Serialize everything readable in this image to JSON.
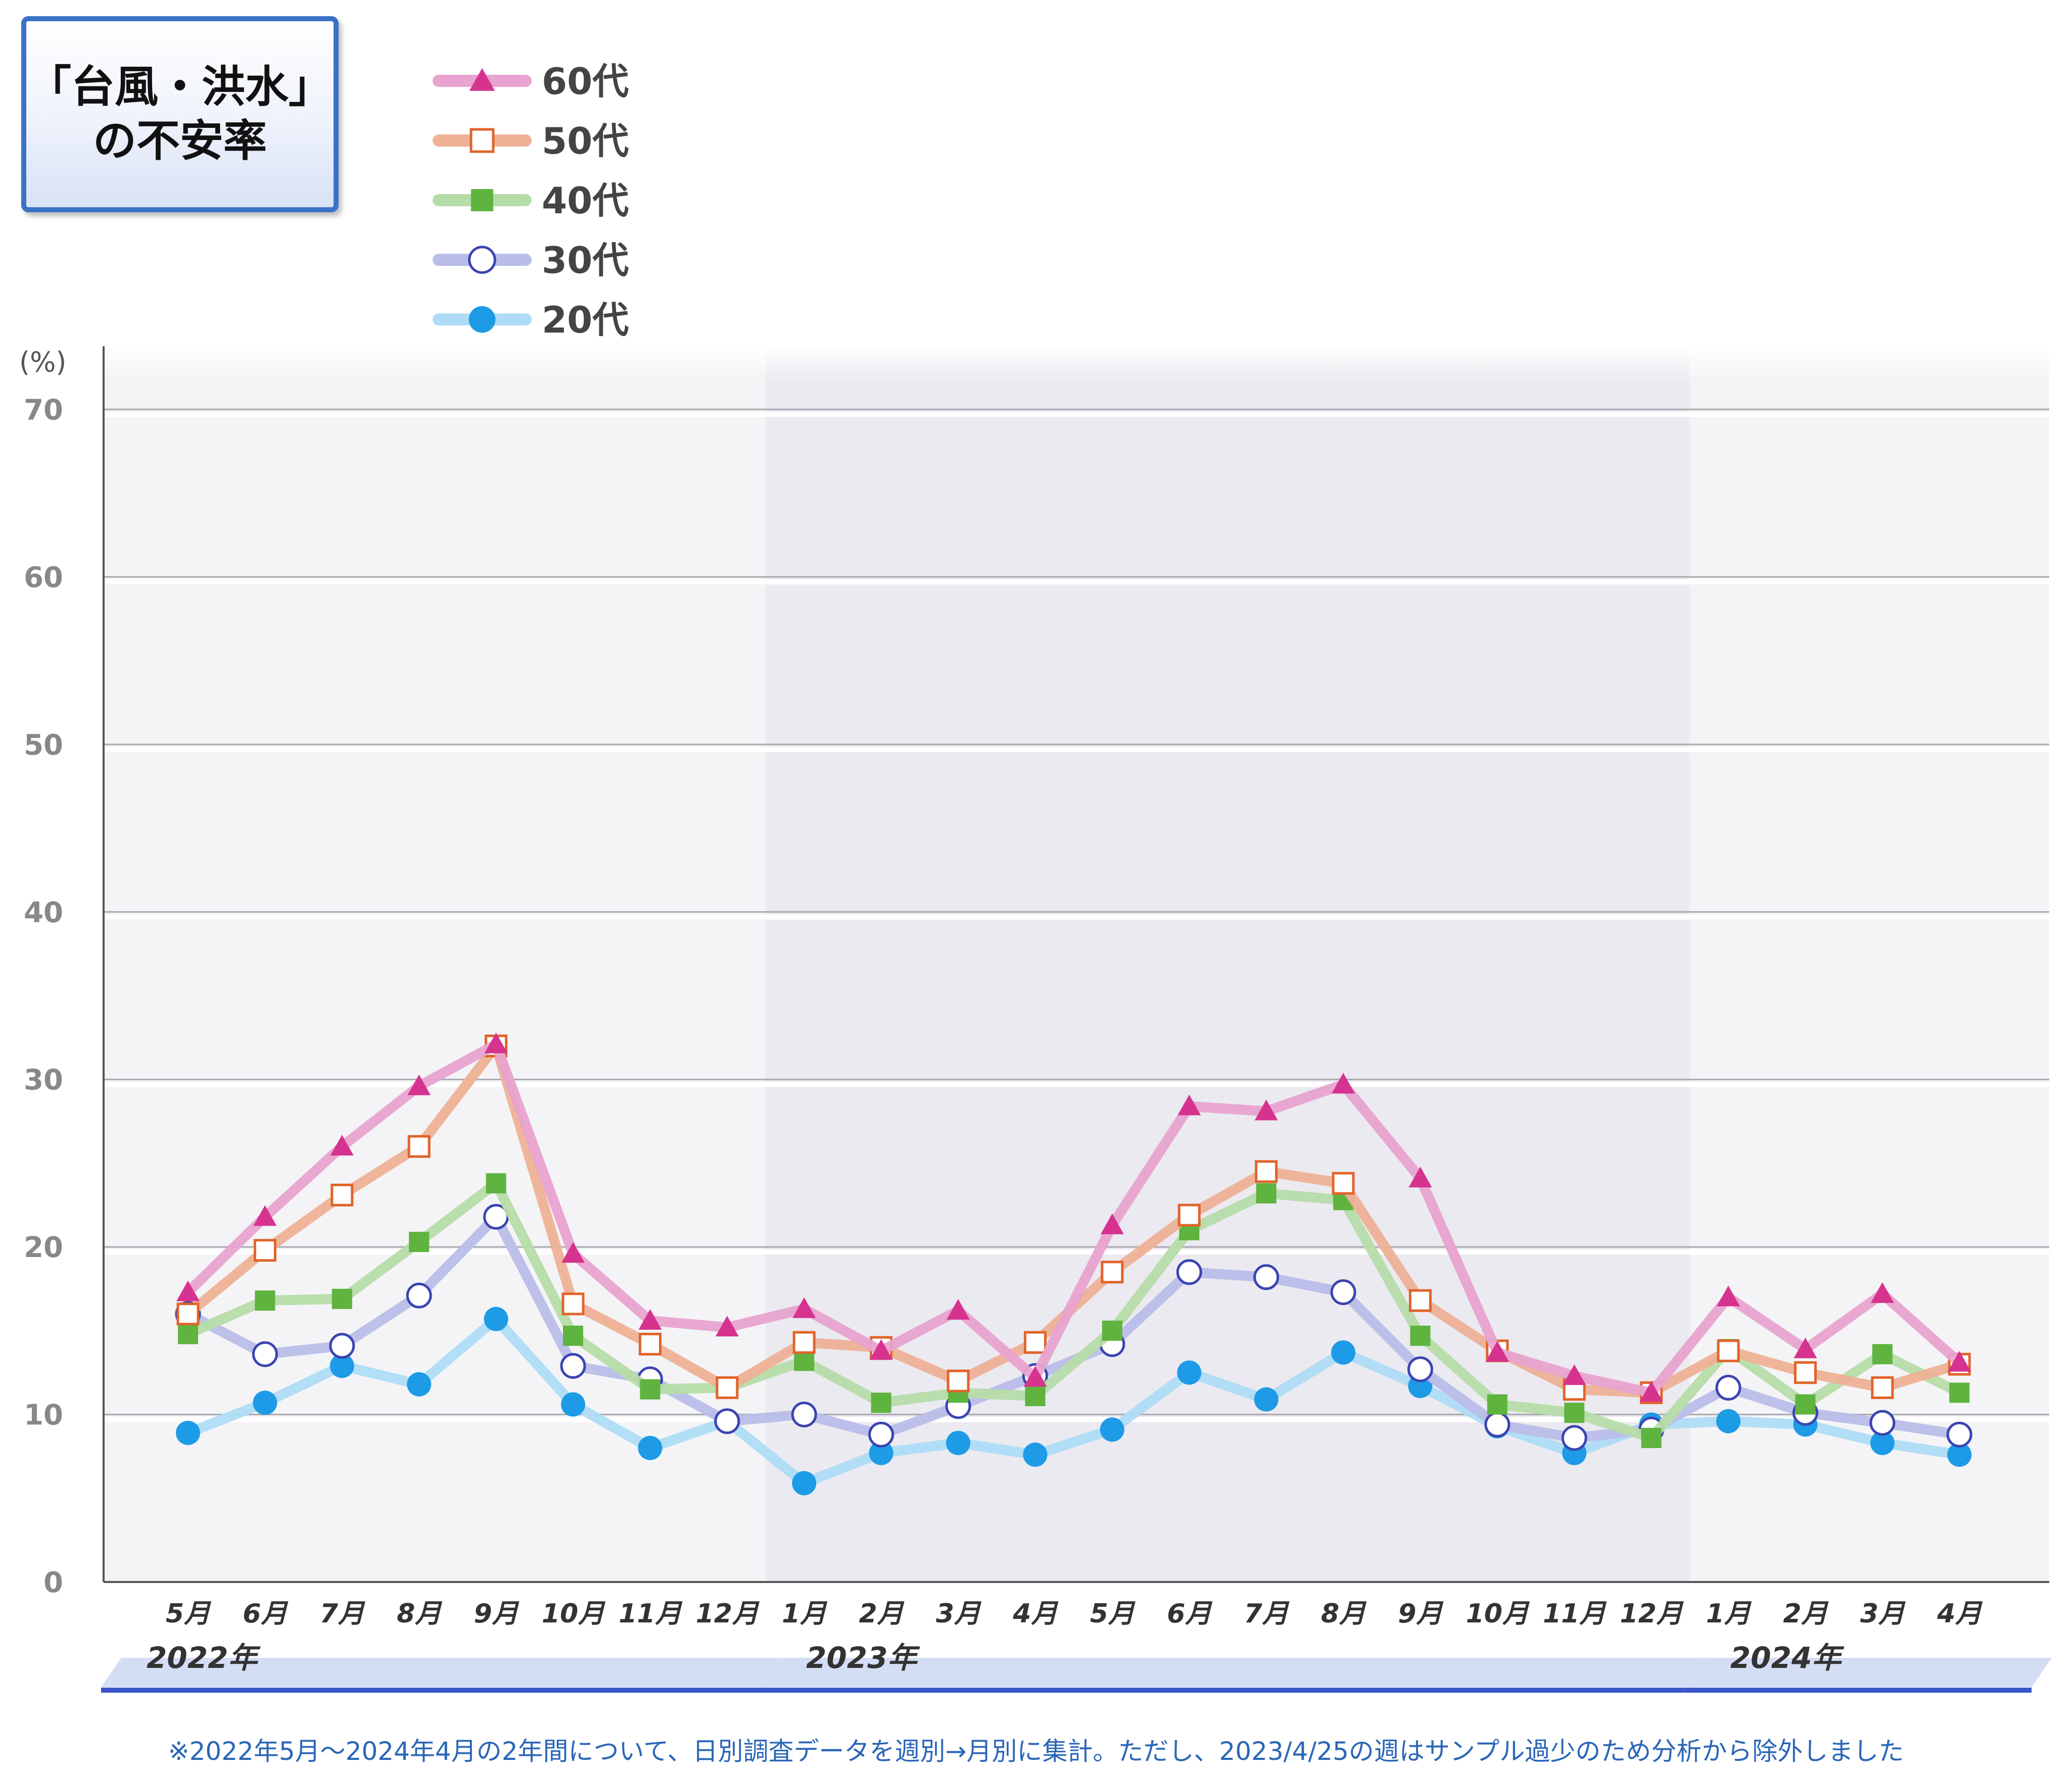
{
  "title": {
    "line1": "「台風・洪水」",
    "line2": "の不安率"
  },
  "chart_data": {
    "type": "line",
    "ylabel": "(%)",
    "ylim": [
      0,
      70
    ],
    "yticks": [
      0,
      10,
      20,
      30,
      40,
      50,
      60,
      70
    ],
    "categories": [
      "5月",
      "6月",
      "7月",
      "8月",
      "9月",
      "10月",
      "11月",
      "12月",
      "1月",
      "2月",
      "3月",
      "4月",
      "5月",
      "6月",
      "7月",
      "8月",
      "9月",
      "10月",
      "11月",
      "12月",
      "1月",
      "2月",
      "3月",
      "4月"
    ],
    "years": [
      {
        "label": "2022年",
        "start": 0,
        "end": 7
      },
      {
        "label": "2023年",
        "start": 8,
        "end": 19
      },
      {
        "label": "2024年",
        "start": 20,
        "end": 23
      }
    ],
    "series": [
      {
        "name": "60代",
        "color": "#e8a3cf",
        "marker": "triangle",
        "markerColor": "#d6338f",
        "values": [
          17.3,
          21.8,
          26.0,
          29.6,
          32.1,
          19.6,
          15.6,
          15.2,
          16.3,
          13.8,
          16.2,
          12.2,
          21.3,
          28.4,
          28.1,
          29.7,
          24.1,
          13.7,
          12.3,
          11.3,
          17.0,
          13.9,
          17.2,
          13.1
        ]
      },
      {
        "name": "50代",
        "color": "#eeb196",
        "marker": "square-open",
        "markerColor": "#e0642a",
        "values": [
          16.0,
          19.8,
          23.1,
          26.0,
          32.0,
          16.6,
          14.2,
          11.6,
          14.3,
          14.0,
          12.0,
          14.3,
          18.5,
          21.9,
          24.5,
          23.8,
          16.8,
          13.8,
          11.5,
          11.3,
          13.8,
          12.5,
          11.6,
          13.0
        ]
      },
      {
        "name": "40代",
        "color": "#b6dca8",
        "marker": "square",
        "markerColor": "#5fb33f",
        "values": [
          14.8,
          16.8,
          16.9,
          20.3,
          23.8,
          14.7,
          11.5,
          11.6,
          13.2,
          10.7,
          11.3,
          11.1,
          15.0,
          21.0,
          23.2,
          22.8,
          14.7,
          10.6,
          10.1,
          8.6,
          13.9,
          10.6,
          13.6,
          11.3
        ]
      },
      {
        "name": "30代",
        "color": "#b9bde8",
        "marker": "circle-open",
        "markerColor": "#3b44b0",
        "values": [
          16.0,
          13.6,
          14.1,
          17.1,
          21.8,
          12.9,
          12.1,
          9.6,
          10.0,
          8.8,
          10.5,
          12.3,
          14.2,
          18.5,
          18.2,
          17.3,
          12.7,
          9.4,
          8.6,
          9.1,
          11.6,
          10.1,
          9.5,
          8.8
        ]
      },
      {
        "name": "20代",
        "color": "#aedcf5",
        "marker": "circle",
        "markerColor": "#1e9be6",
        "values": [
          8.9,
          10.7,
          12.9,
          11.8,
          15.7,
          10.6,
          8.0,
          9.6,
          5.9,
          7.7,
          8.3,
          7.6,
          9.1,
          12.5,
          10.9,
          13.7,
          11.7,
          9.3,
          7.7,
          9.4,
          9.6,
          9.4,
          8.3,
          7.6
        ]
      }
    ]
  },
  "footnote": "※2022年5月～2024年4月の2年間について、日別調査データを週別→月別に集計。ただし、2023/4/25の週はサンプル過少のため分析から除外しました"
}
